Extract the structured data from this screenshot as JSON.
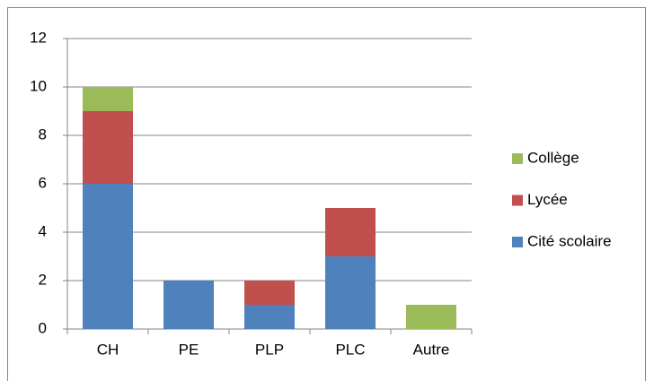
{
  "chart_data": {
    "type": "stacked_bar",
    "categories": [
      "CH",
      "PE",
      "PLP",
      "PLC",
      "Autre"
    ],
    "series": [
      {
        "name": "Cité scolaire",
        "color": "#4f81bd",
        "values": [
          6,
          2,
          1,
          3,
          0
        ]
      },
      {
        "name": "Lycée",
        "color": "#c0504d",
        "values": [
          3,
          0,
          1,
          2,
          0
        ]
      },
      {
        "name": "Collège",
        "color": "#9bbb59",
        "values": [
          1,
          0,
          0,
          0,
          1
        ]
      }
    ],
    "ylim": [
      0,
      12
    ],
    "yticks": [
      0,
      2,
      4,
      6,
      8,
      10,
      12
    ],
    "grid": true,
    "legend": "right"
  }
}
